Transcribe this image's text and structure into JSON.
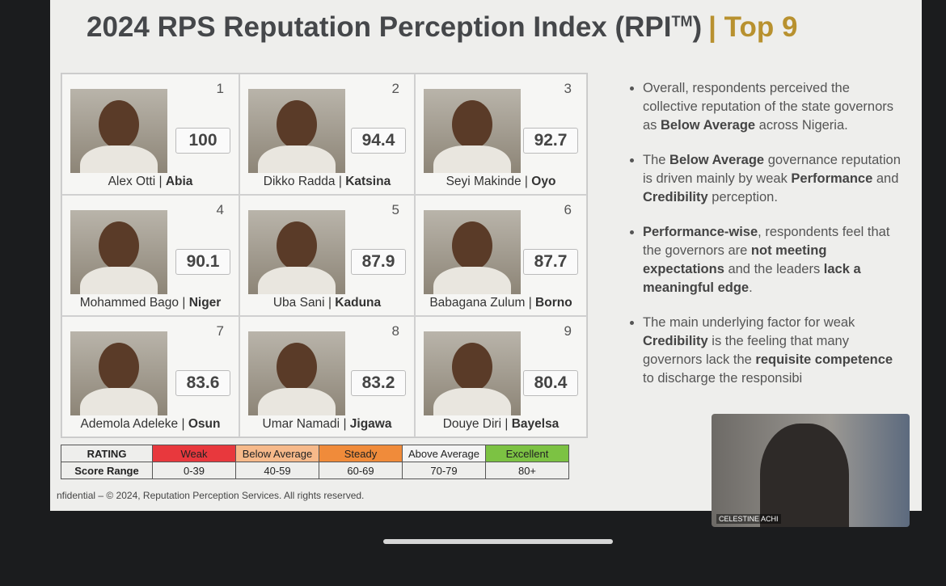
{
  "slide": {
    "title": {
      "main": "2024 RPS Reputation Perception Index (RPI",
      "sup": "TM",
      "close": ")",
      "tag": "| Top 9"
    },
    "separator": "|",
    "cards": [
      {
        "rank": 1,
        "score": 100,
        "name": "Alex Otti",
        "state": "Abia"
      },
      {
        "rank": 2,
        "score": 94.4,
        "name": "Dikko Radda",
        "state": "Katsina"
      },
      {
        "rank": 3,
        "score": 92.7,
        "name": "Seyi Makinde",
        "state": "Oyo"
      },
      {
        "rank": 4,
        "score": 90.1,
        "name": "Mohammed Bago",
        "state": "Niger"
      },
      {
        "rank": 5,
        "score": 87.9,
        "name": "Uba Sani",
        "state": "Kaduna"
      },
      {
        "rank": 6,
        "score": 87.7,
        "name": "Babagana Zulum",
        "state": "Borno"
      },
      {
        "rank": 7,
        "score": 83.6,
        "name": "Ademola Adeleke",
        "state": "Osun"
      },
      {
        "rank": 8,
        "score": 83.2,
        "name": "Umar Namadi",
        "state": "Jigawa"
      },
      {
        "rank": 9,
        "score": 80.4,
        "name": "Douye Diri",
        "state": "Bayelsa"
      }
    ],
    "bullets": [
      [
        {
          "text": "Overall, respondents perceived the collective reputation of the state governors as "
        },
        {
          "text": "Below Average",
          "bold": true
        },
        {
          "text": " across Nigeria."
        }
      ],
      [
        {
          "text": "The "
        },
        {
          "text": "Below Average",
          "bold": true
        },
        {
          "text": " governance reputation is driven mainly by weak "
        },
        {
          "text": "Performance",
          "bold": true
        },
        {
          "text": " and "
        },
        {
          "text": "Credibility",
          "bold": true
        },
        {
          "text": " perception."
        }
      ],
      [
        {
          "text": "Performance-wise",
          "bold": true
        },
        {
          "text": ", respondents feel that the governors are "
        },
        {
          "text": "not meeting expectations",
          "bold": true
        },
        {
          "text": " and the leaders "
        },
        {
          "text": "lack a meaningful edge",
          "bold": true
        },
        {
          "text": "."
        }
      ],
      [
        {
          "text": "The main underlying factor for weak "
        },
        {
          "text": "Credibility",
          "bold": true
        },
        {
          "text": " is the feeling that many governors lack the "
        },
        {
          "text": "requisite competence",
          "bold": true
        },
        {
          "text": " to discharge the responsibi"
        }
      ]
    ],
    "rating_table": {
      "row_headers": [
        "RATING",
        "Score Range"
      ],
      "levels": [
        {
          "label": "Weak",
          "range": "0-39",
          "color": "#e8383d"
        },
        {
          "label": "Below Average",
          "range": "40-59",
          "color": "#f6b98a"
        },
        {
          "label": "Steady",
          "range": "60-69",
          "color": "#f08b3a"
        },
        {
          "label": "Above Average",
          "range": "70-79",
          "color": "#f4f4f4"
        },
        {
          "label": "Excellent",
          "range": "80+",
          "color": "#7cc243"
        }
      ]
    },
    "footer": "nfidential – © 2024, Reputation Perception Services. All rights reserved.",
    "video_name": "CELESTINE ACHI"
  }
}
